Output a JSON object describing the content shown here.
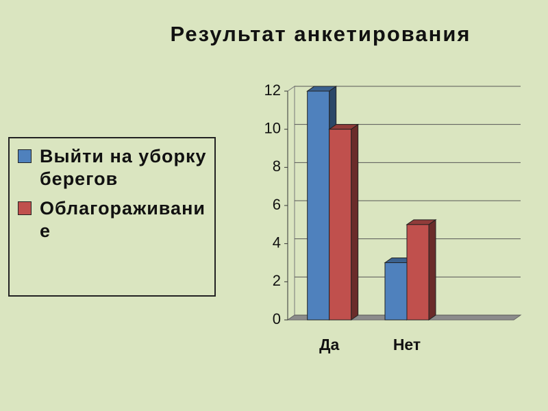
{
  "chart_data": {
    "type": "bar3d",
    "title": "Результат анкетирования",
    "categories": [
      "Да",
      "Нет",
      null
    ],
    "series": [
      {
        "name": "Выйти на уборку берегов",
        "color": "#4f81bd",
        "values": [
          12,
          3,
          null
        ]
      },
      {
        "name": "Облагораживание",
        "color": "#c0504d",
        "values": [
          10,
          5,
          null
        ]
      }
    ],
    "ylim": [
      0,
      12
    ],
    "yticks": [
      0,
      2,
      4,
      6,
      8,
      10,
      12
    ],
    "grid": true,
    "legend": "left"
  }
}
